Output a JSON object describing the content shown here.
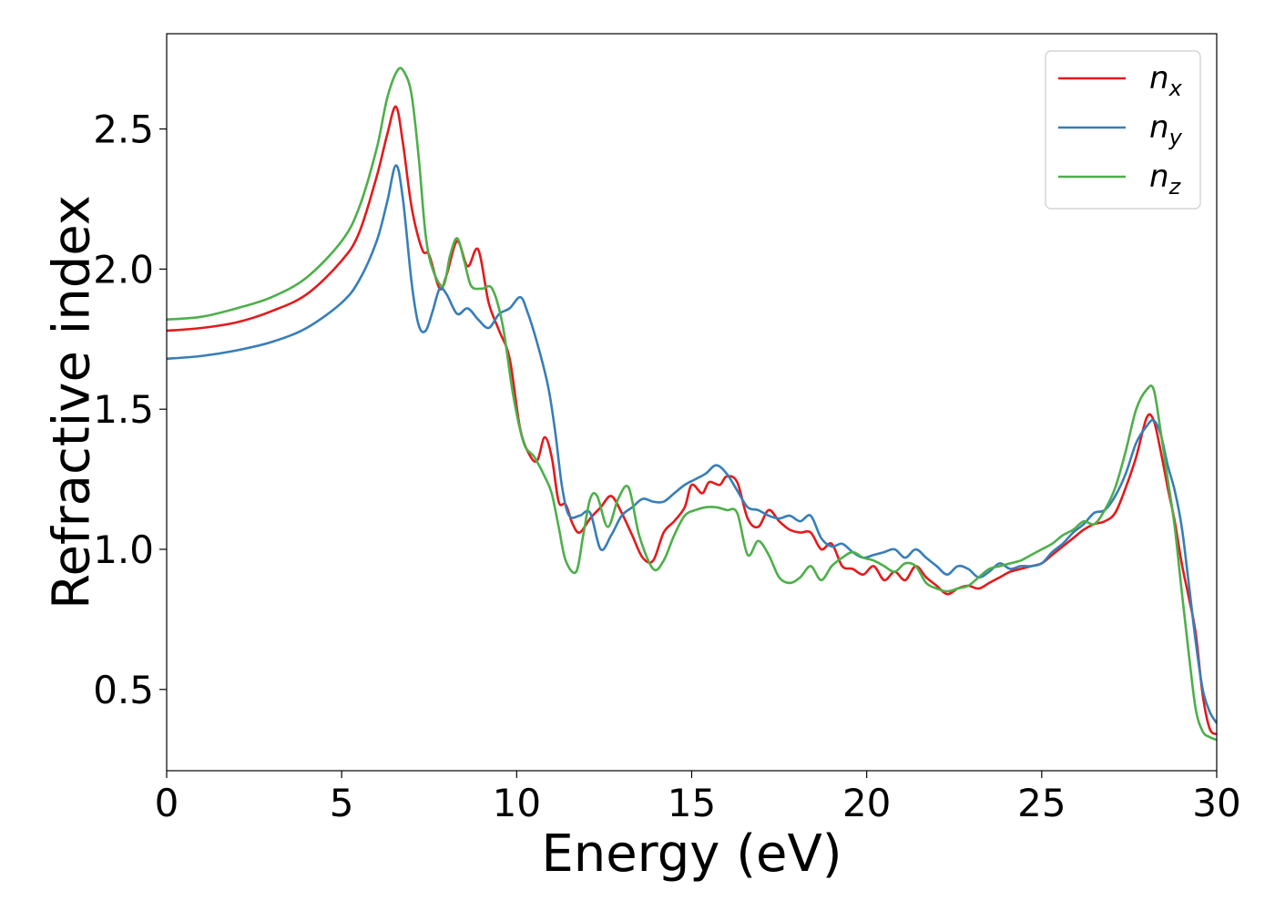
{
  "chart_data": {
    "type": "line",
    "title": "",
    "xlabel": "Energy (eV)",
    "ylabel": "Refractive index",
    "xlim": [
      0,
      30
    ],
    "ylim": [
      0.21,
      2.84
    ],
    "xticks": [
      0,
      5,
      10,
      15,
      20,
      25,
      30
    ],
    "xtick_labels": [
      "0",
      "5",
      "10",
      "15",
      "20",
      "25",
      "30"
    ],
    "yticks": [
      0.5,
      1.0,
      1.5,
      2.0,
      2.5
    ],
    "ytick_labels": [
      "0.5",
      "1.0",
      "1.5",
      "2.0",
      "2.5"
    ],
    "grid": false,
    "legend_position": "top-right",
    "series": [
      {
        "name": "n_x",
        "label_main": "n",
        "label_sub": "x",
        "color": "#e41a1c",
        "x": [
          0,
          1,
          2,
          3,
          4,
          5,
          5.5,
          6,
          6.3,
          6.55,
          6.75,
          7.0,
          7.3,
          7.5,
          7.8,
          8.0,
          8.3,
          8.6,
          8.9,
          9.2,
          9.5,
          9.8,
          10.1,
          10.4,
          10.6,
          10.8,
          11.0,
          11.2,
          11.4,
          11.6,
          11.8,
          12.1,
          12.4,
          12.7,
          13.0,
          13.3,
          13.6,
          13.9,
          14.2,
          14.5,
          14.8,
          15.0,
          15.3,
          15.5,
          15.8,
          16.0,
          16.3,
          16.6,
          16.9,
          17.2,
          17.5,
          17.8,
          18.1,
          18.4,
          18.7,
          19.0,
          19.3,
          19.6,
          19.9,
          20.2,
          20.5,
          20.8,
          21.1,
          21.4,
          21.7,
          22.0,
          22.3,
          22.6,
          22.9,
          23.2,
          23.5,
          23.8,
          24.1,
          24.4,
          24.7,
          25.0,
          25.3,
          25.6,
          25.9,
          26.2,
          26.5,
          26.8,
          27.1,
          27.4,
          27.7,
          28.0,
          28.2,
          28.4,
          28.6,
          28.8,
          29.0,
          29.2,
          29.4,
          29.6,
          29.8,
          30.0
        ],
        "y": [
          1.78,
          1.79,
          1.81,
          1.85,
          1.91,
          2.03,
          2.13,
          2.33,
          2.48,
          2.58,
          2.45,
          2.22,
          2.07,
          2.05,
          1.93,
          1.98,
          2.1,
          2.01,
          2.07,
          1.88,
          1.78,
          1.68,
          1.43,
          1.33,
          1.32,
          1.4,
          1.33,
          1.17,
          1.16,
          1.09,
          1.06,
          1.11,
          1.15,
          1.19,
          1.13,
          1.05,
          0.97,
          0.96,
          1.06,
          1.1,
          1.15,
          1.23,
          1.2,
          1.24,
          1.23,
          1.26,
          1.24,
          1.11,
          1.08,
          1.14,
          1.1,
          1.07,
          1.06,
          1.06,
          1.0,
          1.02,
          0.94,
          0.93,
          0.91,
          0.94,
          0.89,
          0.92,
          0.89,
          0.94,
          0.9,
          0.87,
          0.84,
          0.86,
          0.87,
          0.86,
          0.88,
          0.9,
          0.92,
          0.93,
          0.94,
          0.95,
          0.98,
          1.01,
          1.04,
          1.07,
          1.09,
          1.1,
          1.13,
          1.22,
          1.33,
          1.47,
          1.46,
          1.35,
          1.22,
          1.1,
          0.95,
          0.83,
          0.7,
          0.48,
          0.36,
          0.34
        ]
      },
      {
        "name": "n_y",
        "label_main": "n",
        "label_sub": "y",
        "color": "#377eb8",
        "x": [
          0,
          1,
          2,
          3,
          4,
          5,
          5.5,
          6,
          6.3,
          6.55,
          6.75,
          7.0,
          7.2,
          7.4,
          7.6,
          7.8,
          8.0,
          8.3,
          8.6,
          8.9,
          9.2,
          9.5,
          9.8,
          10.1,
          10.3,
          10.6,
          10.9,
          11.1,
          11.3,
          11.5,
          11.8,
          12.1,
          12.4,
          12.7,
          13.0,
          13.3,
          13.6,
          13.9,
          14.2,
          14.5,
          14.8,
          15.1,
          15.4,
          15.7,
          16.0,
          16.3,
          16.6,
          16.9,
          17.2,
          17.5,
          17.8,
          18.1,
          18.4,
          18.7,
          19.0,
          19.3,
          19.6,
          19.9,
          20.2,
          20.5,
          20.8,
          21.1,
          21.4,
          21.7,
          22.0,
          22.3,
          22.6,
          22.9,
          23.2,
          23.5,
          23.8,
          24.1,
          24.4,
          24.7,
          25.0,
          25.3,
          25.6,
          25.9,
          26.2,
          26.5,
          26.8,
          27.1,
          27.4,
          27.7,
          28.0,
          28.2,
          28.4,
          28.6,
          28.8,
          29.0,
          29.2,
          29.4,
          29.6,
          29.8,
          30.0
        ],
        "y": [
          1.68,
          1.69,
          1.71,
          1.74,
          1.79,
          1.88,
          1.96,
          2.1,
          2.24,
          2.37,
          2.25,
          1.95,
          1.8,
          1.78,
          1.85,
          1.93,
          1.91,
          1.84,
          1.86,
          1.82,
          1.79,
          1.84,
          1.86,
          1.9,
          1.85,
          1.73,
          1.58,
          1.42,
          1.22,
          1.12,
          1.12,
          1.13,
          1.0,
          1.05,
          1.12,
          1.15,
          1.18,
          1.17,
          1.17,
          1.2,
          1.23,
          1.25,
          1.27,
          1.3,
          1.27,
          1.21,
          1.15,
          1.14,
          1.12,
          1.11,
          1.12,
          1.1,
          1.12,
          1.04,
          1.01,
          1.02,
          0.99,
          0.97,
          0.98,
          0.99,
          1.0,
          0.97,
          1.0,
          0.97,
          0.94,
          0.91,
          0.94,
          0.93,
          0.9,
          0.92,
          0.95,
          0.93,
          0.94,
          0.94,
          0.95,
          0.99,
          1.02,
          1.06,
          1.09,
          1.13,
          1.14,
          1.19,
          1.27,
          1.38,
          1.44,
          1.46,
          1.41,
          1.3,
          1.21,
          1.08,
          0.88,
          0.67,
          0.5,
          0.42,
          0.38
        ]
      },
      {
        "name": "n_z",
        "label_main": "n",
        "label_sub": "z",
        "color": "#4daf4a",
        "x": [
          0,
          1,
          2,
          3,
          4,
          5,
          5.5,
          6,
          6.3,
          6.6,
          6.8,
          7.0,
          7.2,
          7.4,
          7.6,
          7.9,
          8.1,
          8.3,
          8.5,
          8.7,
          9.0,
          9.3,
          9.6,
          9.9,
          10.2,
          10.5,
          10.8,
          11.0,
          11.2,
          11.4,
          11.7,
          11.9,
          12.1,
          12.3,
          12.6,
          12.9,
          13.2,
          13.5,
          13.9,
          14.2,
          14.5,
          14.8,
          15.1,
          15.4,
          15.7,
          16.0,
          16.3,
          16.6,
          16.9,
          17.2,
          17.5,
          17.8,
          18.1,
          18.4,
          18.7,
          19.0,
          19.3,
          19.6,
          19.9,
          20.2,
          20.5,
          20.8,
          21.1,
          21.4,
          21.7,
          22.0,
          22.3,
          22.6,
          22.9,
          23.2,
          23.5,
          23.8,
          24.1,
          24.4,
          24.7,
          25.0,
          25.3,
          25.6,
          25.9,
          26.2,
          26.5,
          26.8,
          27.1,
          27.4,
          27.7,
          28.0,
          28.2,
          28.4,
          28.6,
          28.8,
          29.0,
          29.2,
          29.4,
          29.6,
          29.8,
          30.0
        ],
        "y": [
          1.82,
          1.83,
          1.86,
          1.9,
          1.97,
          2.1,
          2.22,
          2.43,
          2.61,
          2.71,
          2.7,
          2.62,
          2.4,
          2.12,
          2.0,
          1.94,
          2.05,
          2.11,
          2.03,
          1.94,
          1.93,
          1.93,
          1.8,
          1.55,
          1.38,
          1.33,
          1.26,
          1.2,
          1.08,
          0.96,
          0.92,
          1.05,
          1.18,
          1.19,
          1.08,
          1.18,
          1.22,
          1.05,
          0.93,
          0.96,
          1.05,
          1.12,
          1.14,
          1.15,
          1.15,
          1.14,
          1.13,
          0.98,
          1.03,
          0.98,
          0.9,
          0.88,
          0.9,
          0.94,
          0.89,
          0.94,
          0.97,
          0.99,
          0.97,
          0.96,
          0.94,
          0.92,
          0.95,
          0.94,
          0.88,
          0.86,
          0.85,
          0.86,
          0.87,
          0.9,
          0.93,
          0.94,
          0.95,
          0.96,
          0.98,
          1.0,
          1.02,
          1.05,
          1.07,
          1.1,
          1.09,
          1.14,
          1.22,
          1.35,
          1.5,
          1.57,
          1.57,
          1.42,
          1.25,
          1.08,
          0.85,
          0.63,
          0.43,
          0.35,
          0.33,
          0.32
        ]
      }
    ]
  }
}
